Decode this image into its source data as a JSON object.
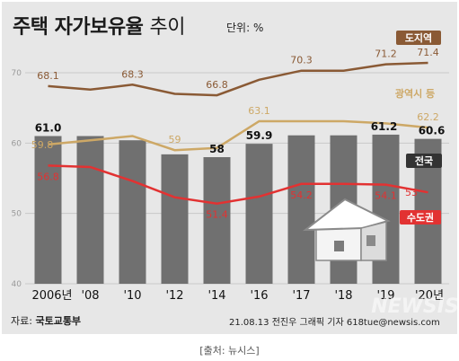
{
  "header": {
    "title_bold": "주택 자가보유율",
    "title_light": "추이",
    "unit": "단위: %"
  },
  "footer": {
    "source_label": "자료:",
    "source_name": "국토교통부",
    "credit": "21.08.13 전진우 그래픽 기자 618tue@newsis.com",
    "watermark": "NEWSIS",
    "attribution": "[출처: 뉴시스]"
  },
  "colors": {
    "bars": "#707070",
    "dosi": "#8a5a35",
    "gwangyeok": "#cda866",
    "sudo": "#e23232"
  },
  "chart_data": {
    "type": "bar",
    "categories": [
      "2006년",
      "'08",
      "'10",
      "'12",
      "'14",
      "'16",
      "'17",
      "'18",
      "'19",
      "'20년"
    ],
    "ylim": [
      40,
      70
    ],
    "yticks": [
      40,
      50,
      60,
      70
    ],
    "grid": true,
    "series": [
      {
        "name": "전국",
        "type": "bar",
        "values": [
          61.0,
          61.0,
          60.4,
          58.4,
          58.0,
          59.9,
          61.1,
          61.1,
          61.2,
          60.6
        ],
        "labels": [
          "61.0",
          "",
          "",
          "",
          "58",
          "59.9",
          "",
          "",
          "61.2",
          "60.6"
        ]
      },
      {
        "name": "도지역",
        "type": "line",
        "values": [
          68.1,
          67.6,
          68.3,
          67.0,
          66.8,
          69.0,
          70.3,
          70.3,
          71.2,
          71.4
        ],
        "labels": [
          "68.1",
          "",
          "68.3",
          "",
          "66.8",
          "",
          "70.3",
          "",
          "71.2",
          "71.4"
        ]
      },
      {
        "name": "광역시 등",
        "type": "line",
        "values": [
          59.8,
          60.4,
          61.0,
          59.0,
          59.3,
          63.1,
          63.1,
          63.1,
          62.8,
          62.2
        ],
        "labels": [
          "59.8",
          "",
          "",
          "59",
          "",
          "63.1",
          "",
          "",
          "",
          "62.2"
        ]
      },
      {
        "name": "수도권",
        "type": "line",
        "values": [
          56.8,
          56.6,
          54.6,
          52.3,
          51.4,
          52.4,
          54.2,
          54.2,
          54.1,
          53.0
        ],
        "labels": [
          "56.8",
          "",
          "",
          "",
          "51.4",
          "",
          "54.2",
          "",
          "54.1",
          "53"
        ]
      }
    ]
  }
}
